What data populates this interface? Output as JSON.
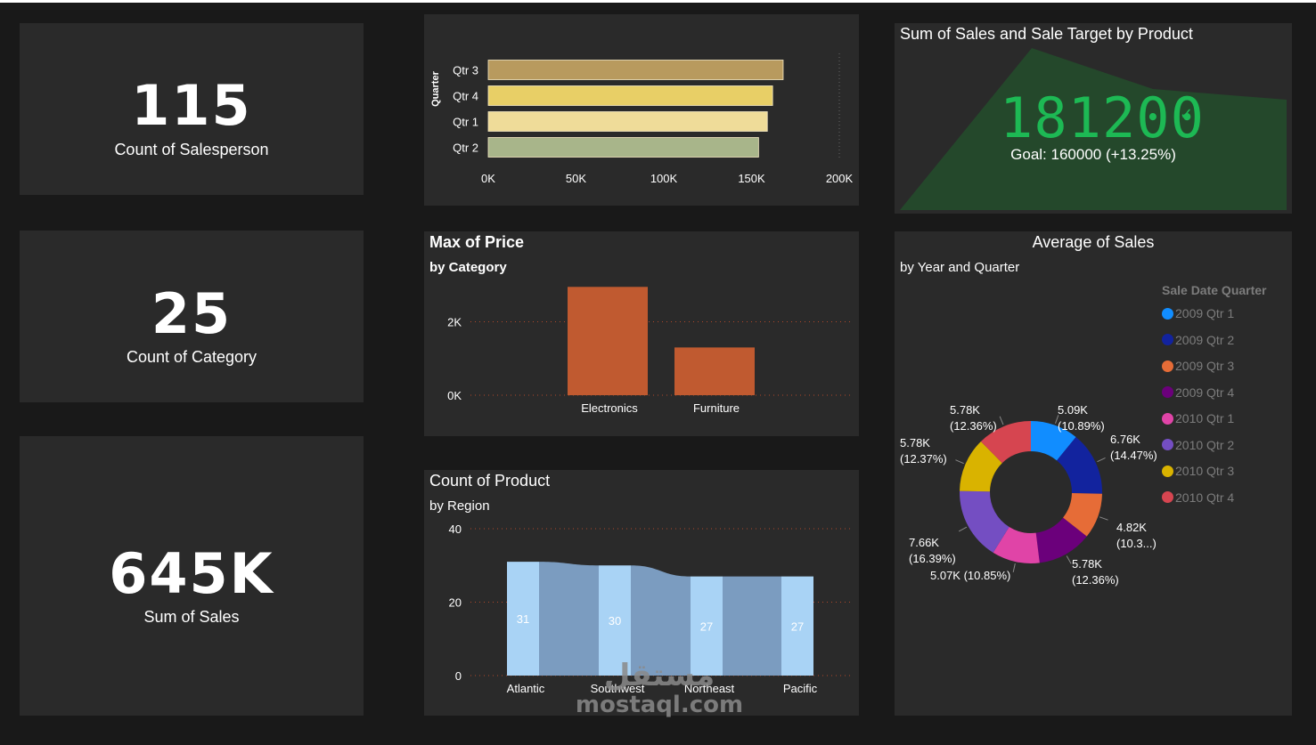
{
  "kpis": [
    {
      "value": "115",
      "label": "Count of Salesperson"
    },
    {
      "value": "25",
      "label": "Count of Category"
    },
    {
      "value": "645K",
      "label": "Sum of Sales"
    }
  ],
  "quarter_chart": {
    "type": "bar",
    "ylabel": "Quarter",
    "categories": [
      "Qtr 3",
      "Qtr 4",
      "Qtr 1",
      "Qtr 2"
    ],
    "values": [
      168000,
      162000,
      159000,
      154000
    ],
    "xticks": [
      "0K",
      "50K",
      "100K",
      "150K",
      "200K"
    ],
    "xlim": [
      0,
      200000
    ],
    "colors": [
      "#b89a5e",
      "#e8cf66",
      "#efdc99",
      "#a8b58a"
    ]
  },
  "gauge": {
    "title": "Sum of Sales and Sale Target by Product",
    "value": "181200",
    "goal_text": "Goal: 160000 (+13.25%)",
    "check_icon": "check-icon",
    "value_color": "#1db954"
  },
  "price_chart": {
    "type": "bar",
    "title": "Max of Price",
    "subtitle": "by Category",
    "categories": [
      "Electronics",
      "Furniture"
    ],
    "values": [
      2950,
      1300
    ],
    "yticks": [
      "0K",
      "2K"
    ],
    "ylim": [
      0,
      3200
    ],
    "color": "#c05a30"
  },
  "region_chart": {
    "type": "bar",
    "title": "Count of Product",
    "subtitle": "by Region",
    "categories": [
      "Atlantic",
      "Southwest",
      "Northeast",
      "Pacific"
    ],
    "values": [
      31,
      30,
      27,
      27
    ],
    "yticks": [
      "0",
      "20",
      "40"
    ],
    "ylim": [
      0,
      42
    ],
    "color": "#a9d3f5",
    "ribbon_color": "#7b9cc0"
  },
  "donut": {
    "type": "pie",
    "title": "Average of Sales",
    "subtitle": "by Year and Quarter",
    "legend_title": "Sale Date Quarter",
    "slices": [
      {
        "name": "2009 Qtr 1",
        "value": 5.09,
        "label": "5.09K",
        "pct": "(10.89%)",
        "color": "#118dff"
      },
      {
        "name": "2009 Qtr 2",
        "value": 6.76,
        "label": "6.76K",
        "pct": "(14.47%)",
        "color": "#12239e"
      },
      {
        "name": "2009 Qtr 3",
        "value": 4.82,
        "label": "4.82K",
        "pct": "(10.3...)",
        "color": "#e66c37"
      },
      {
        "name": "2009 Qtr 4",
        "value": 5.78,
        "label": "5.78K",
        "pct": "(12.36%)",
        "color": "#6b007b"
      },
      {
        "name": "2010 Qtr 1",
        "value": 5.07,
        "label": "5.07K (10.85%)",
        "pct": "",
        "color": "#e044a7"
      },
      {
        "name": "2010 Qtr 2",
        "value": 7.66,
        "label": "7.66K",
        "pct": "(16.39%)",
        "color": "#744ec2"
      },
      {
        "name": "2010 Qtr 3",
        "value": 5.78,
        "label": "5.78K",
        "pct": "(12.37%)",
        "color": "#d9b300"
      },
      {
        "name": "2010 Qtr 4",
        "value": 5.78,
        "label": "5.78K",
        "pct": "(12.36%)",
        "color": "#d64550"
      }
    ]
  },
  "watermark": {
    "arabic": "مستقل",
    "text": "mostaql.com"
  }
}
